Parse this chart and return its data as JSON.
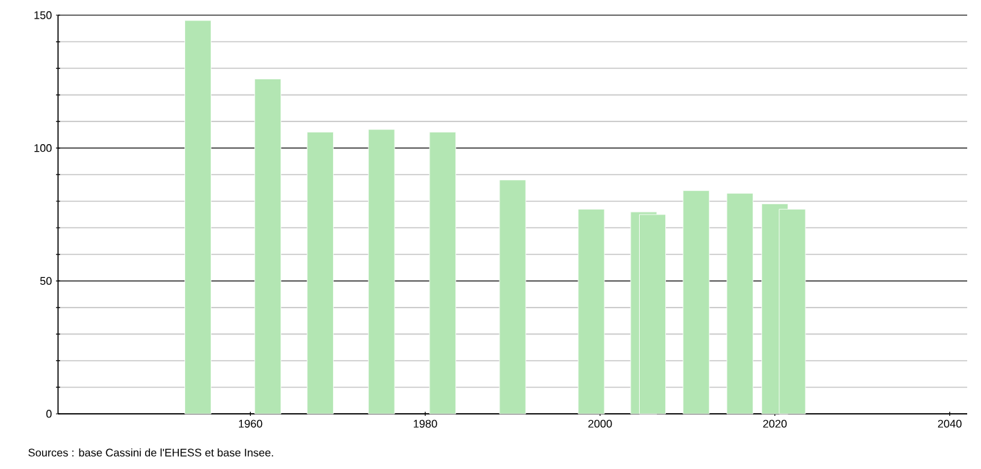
{
  "chart_data": {
    "type": "bar",
    "x": [
      1954,
      1962,
      1968,
      1975,
      1982,
      1990,
      1999,
      2005,
      2006,
      2011,
      2016,
      2020,
      2022
    ],
    "values": [
      148,
      126,
      106,
      107,
      106,
      88,
      77,
      76,
      75,
      84,
      83,
      79,
      77
    ],
    "color": "#b3e6b3",
    "xlim": [
      1938,
      2042
    ],
    "xticks": [
      1960,
      1980,
      2000,
      2020,
      2040
    ],
    "ylim": [
      0,
      150
    ],
    "yticks": [
      0,
      {
        "value": 10,
        "label": null
      },
      {
        "value": 20,
        "label": null
      },
      {
        "value": 30,
        "label": null
      },
      {
        "value": 40,
        "label": null
      },
      50,
      {
        "value": 60,
        "label": null
      },
      {
        "value": 70,
        "label": null
      },
      {
        "value": 80,
        "label": null
      },
      {
        "value": 90,
        "label": null
      },
      100,
      {
        "value": 110,
        "label": null
      },
      {
        "value": 120,
        "label": null
      },
      {
        "value": 130,
        "label": null
      },
      {
        "value": 140,
        "label": null
      },
      150
    ],
    "grid": "y",
    "annotations": [
      "Sources : base Cassini de l'EHESS et base Insee."
    ]
  }
}
